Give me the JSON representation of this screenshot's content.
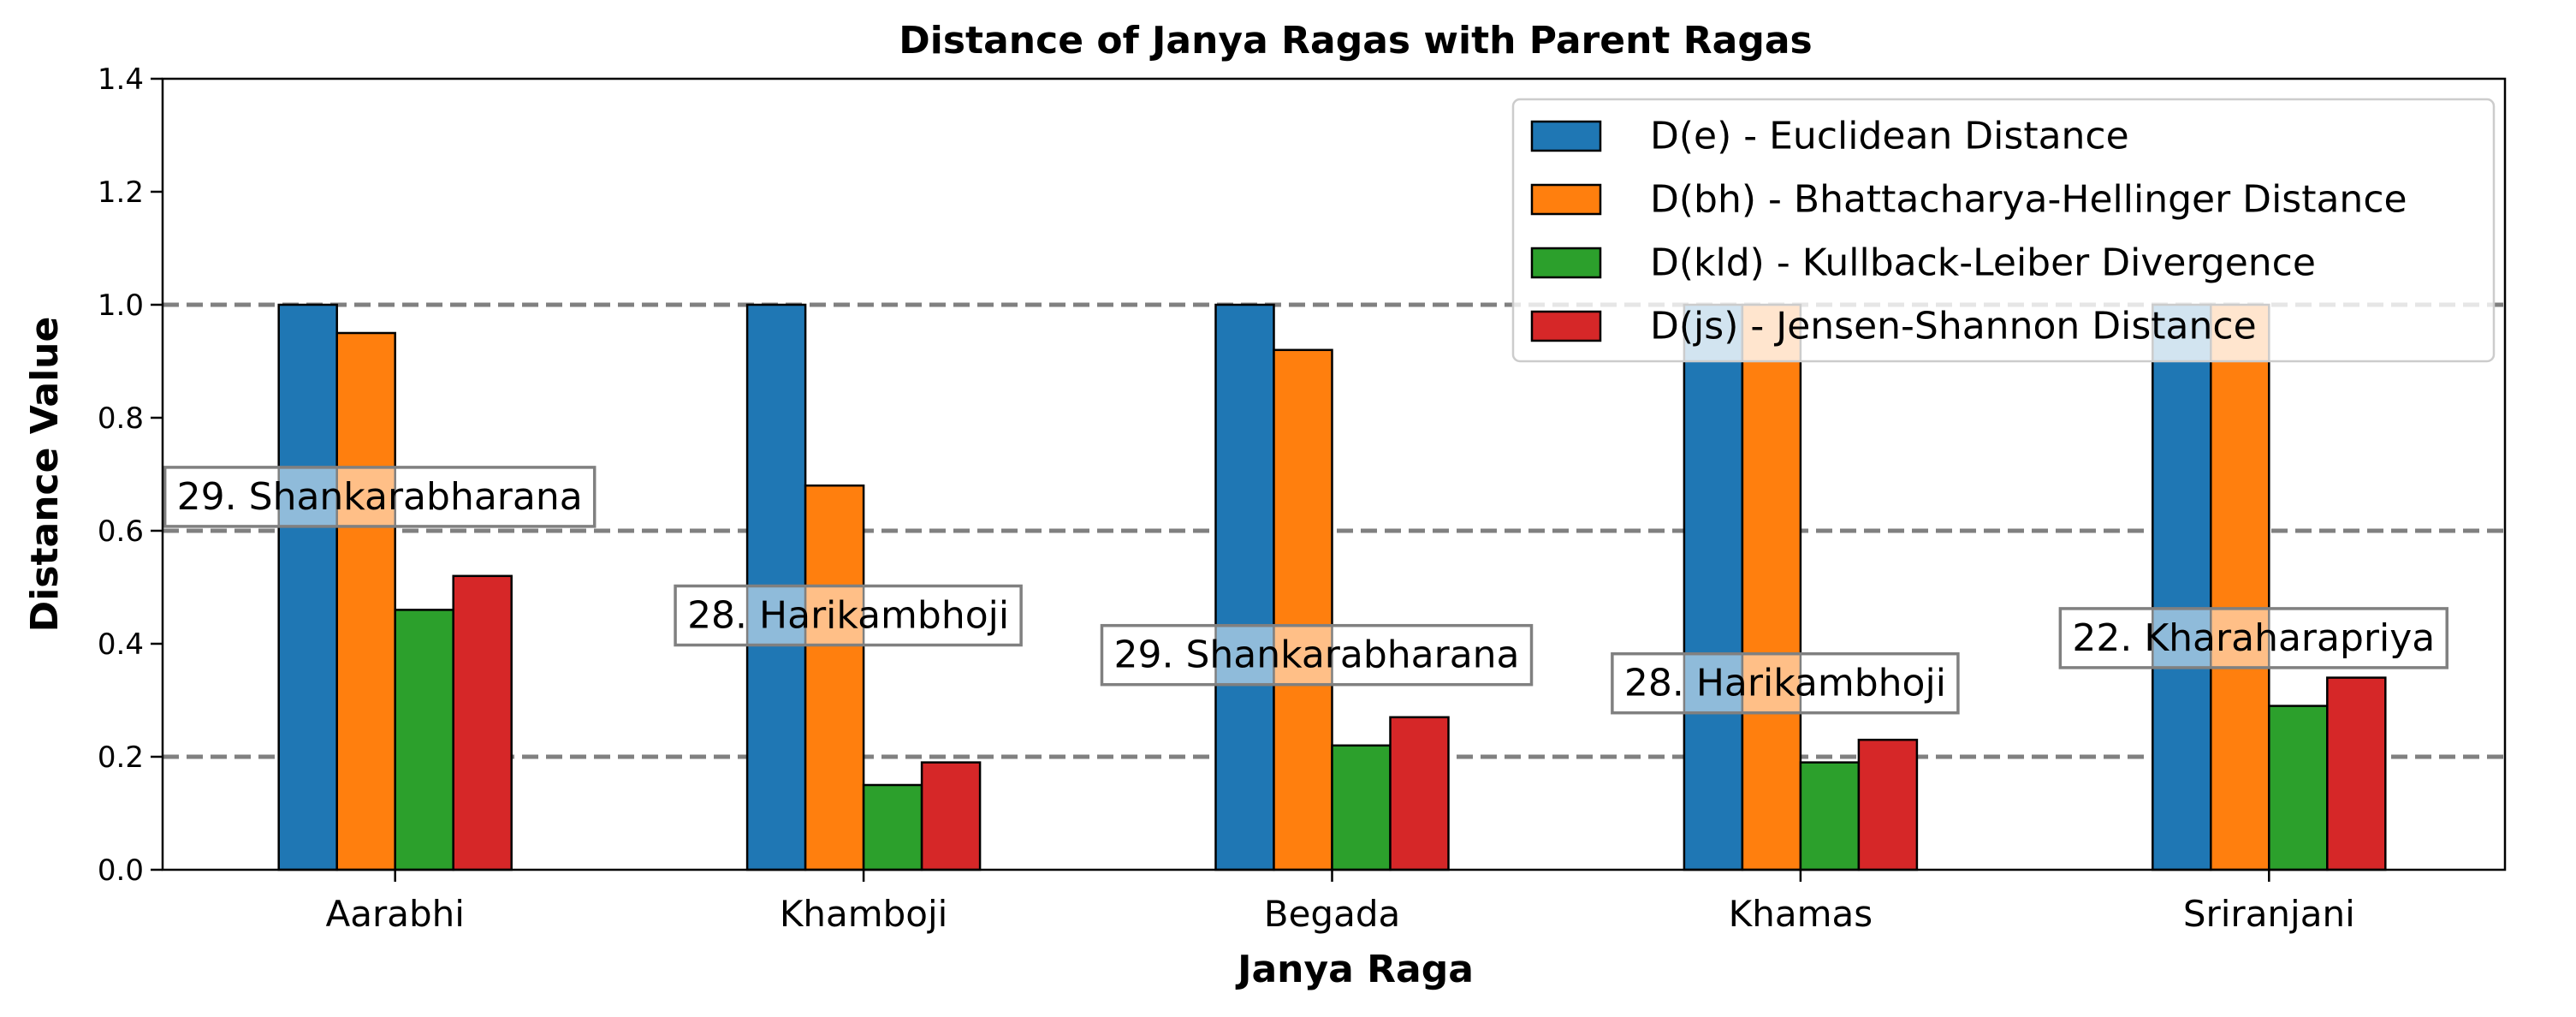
{
  "chart_data": {
    "type": "bar",
    "title": "Distance of Janya Ragas with Parent Ragas",
    "xlabel": "Janya Raga",
    "ylabel": "Distance Value",
    "ylim": [
      0,
      1.4
    ],
    "yticks": [
      "0.0",
      "0.2",
      "0.4",
      "0.6",
      "0.8",
      "1.0",
      "1.2",
      "1.4"
    ],
    "categories": [
      "Aarabhi",
      "Khamboji",
      "Begada",
      "Khamas",
      "Sriranjani"
    ],
    "series": [
      {
        "name": "D(e) - Euclidean Distance",
        "color": "#1f77b4",
        "values": [
          1.0,
          1.0,
          1.0,
          1.0,
          1.0
        ]
      },
      {
        "name": "D(bh) - Bhattacharya-Hellinger Distance",
        "color": "#ff7f0e",
        "values": [
          0.95,
          0.68,
          0.92,
          1.0,
          1.0
        ]
      },
      {
        "name": "D(kld) - Kullback-Leiber Divergence",
        "color": "#2ca02c",
        "values": [
          0.46,
          0.15,
          0.22,
          0.19,
          0.29
        ]
      },
      {
        "name": "D(js) - Jensen-Shannon Distance",
        "color": "#d62728",
        "values": [
          0.52,
          0.19,
          0.27,
          0.23,
          0.34
        ]
      }
    ],
    "reference_lines": [
      0.2,
      0.6,
      1.0
    ],
    "annotations": [
      {
        "category": "Aarabhi",
        "text": "29. Shankarabharana",
        "y": 0.66
      },
      {
        "category": "Khamboji",
        "text": "28. Harikambhoji",
        "y": 0.45
      },
      {
        "category": "Begada",
        "text": "29. Shankarabharana",
        "y": 0.38
      },
      {
        "category": "Khamas",
        "text": "28. Harikambhoji",
        "y": 0.33
      },
      {
        "category": "Sriranjani",
        "text": "22. Kharaharapriya",
        "y": 0.41
      }
    ],
    "legend_position": "upper right",
    "grid": false
  }
}
